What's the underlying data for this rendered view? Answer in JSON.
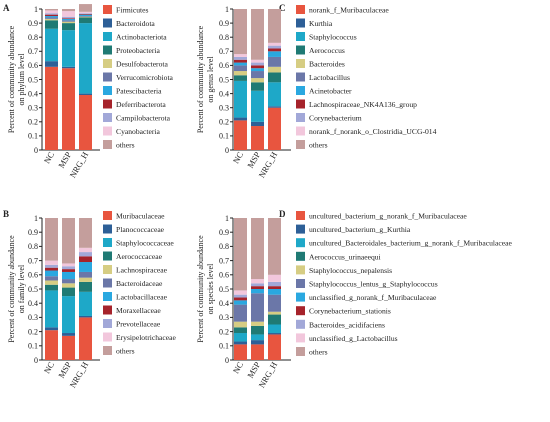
{
  "colors": [
    "#e8553f",
    "#2d5f97",
    "#1ea8c8",
    "#1f7a74",
    "#d6cd83",
    "#6b77a8",
    "#2aa8e0",
    "#a6232b",
    "#a2a8d8",
    "#f2c7dc",
    "#c49e9c"
  ],
  "chart_data": [
    {
      "panel": "A",
      "type": "bar",
      "stacked": true,
      "ylabel": "Percent of community abundance on phylum level",
      "ylabel_lines": [
        "Percent of community abundance",
        "on phylum level"
      ],
      "yticks": [
        "0",
        "0.1",
        "0.2",
        "0.3",
        "0.4",
        "0.5",
        "0.6",
        "0.7",
        "0.8",
        "0.9",
        "1"
      ],
      "ylim": [
        0,
        1
      ],
      "categories": [
        "NC",
        "MSP",
        "NRG_H"
      ],
      "series": [
        {
          "name": "Firmicutes",
          "values": [
            0.59,
            0.58,
            0.39
          ]
        },
        {
          "name": "Bacteroidota",
          "values": [
            0.04,
            0.01,
            0.01
          ]
        },
        {
          "name": "Actinobacteriota",
          "values": [
            0.23,
            0.26,
            0.5
          ]
        },
        {
          "name": "Proteobacteria",
          "values": [
            0.06,
            0.05,
            0.04
          ]
        },
        {
          "name": "Desulfobacterota",
          "values": [
            0.01,
            0.01,
            0.005
          ]
        },
        {
          "name": "Verrucomicrobiota",
          "values": [
            0.01,
            0.01,
            0.005
          ]
        },
        {
          "name": "Patescibacteria",
          "values": [
            0.01,
            0.01,
            0.01
          ]
        },
        {
          "name": "Deferribacterota",
          "values": [
            0.01,
            0.005,
            0.005
          ]
        },
        {
          "name": "Campilobacterota",
          "values": [
            0.01,
            0.01,
            0.005
          ]
        },
        {
          "name": "Cyanobacteria",
          "values": [
            0.02,
            0.04,
            0.01
          ]
        },
        {
          "name": "others",
          "values": [
            0.01,
            0.015,
            0.055
          ]
        }
      ]
    },
    {
      "panel": "B",
      "type": "bar",
      "stacked": true,
      "ylabel": "Percent of community abundance on family level",
      "ylabel_lines": [
        "Percent of community abundance",
        "on family level"
      ],
      "yticks": [
        "0",
        "0.1",
        "0.2",
        "0.3",
        "0.4",
        "0.5",
        "0.6",
        "0.7",
        "0.8",
        "0.9",
        "1"
      ],
      "ylim": [
        0,
        1
      ],
      "categories": [
        "NC",
        "MSP",
        "NRG_H"
      ],
      "series": [
        {
          "name": "Muribaculaceae",
          "values": [
            0.21,
            0.17,
            0.3
          ]
        },
        {
          "name": "Planococcaceae",
          "values": [
            0.02,
            0.02,
            0.01
          ]
        },
        {
          "name": "Staphylococcaceae",
          "values": [
            0.26,
            0.26,
            0.17
          ]
        },
        {
          "name": "Aerococcaceae",
          "values": [
            0.04,
            0.06,
            0.07
          ]
        },
        {
          "name": "Lachnospiraceae",
          "values": [
            0.03,
            0.03,
            0.03
          ]
        },
        {
          "name": "Bacteroidaceae",
          "values": [
            0.03,
            0.03,
            0.04
          ]
        },
        {
          "name": "Lactobacillaceae",
          "values": [
            0.04,
            0.05,
            0.07
          ]
        },
        {
          "name": "Moraxellaceae",
          "values": [
            0.02,
            0.02,
            0.04
          ]
        },
        {
          "name": "Prevotellaceae",
          "values": [
            0.02,
            0.02,
            0.03
          ]
        },
        {
          "name": "Erysipelotrichaceae",
          "values": [
            0.03,
            0.02,
            0.03
          ]
        },
        {
          "name": "others",
          "values": [
            0.3,
            0.32,
            0.21
          ]
        }
      ]
    },
    {
      "panel": "C",
      "type": "bar",
      "stacked": true,
      "ylabel": "Percent of community abundance on genus level",
      "ylabel_lines": [
        "Percent of community abundance",
        "on genus level"
      ],
      "yticks": [
        "0",
        "0.1",
        "0.2",
        "0.3",
        "0.4",
        "0.5",
        "0.6",
        "0.7",
        "0.8",
        "0.9",
        "1"
      ],
      "ylim": [
        0,
        1
      ],
      "categories": [
        "NC",
        "MSP",
        "NRG_H"
      ],
      "series": [
        {
          "name": "norank_f_Muribaculaceae",
          "values": [
            0.21,
            0.17,
            0.3
          ]
        },
        {
          "name": "Kurthia",
          "values": [
            0.02,
            0.03,
            0.01
          ]
        },
        {
          "name": "Staphylococcus",
          "values": [
            0.26,
            0.22,
            0.17
          ]
        },
        {
          "name": "Aerococcus",
          "values": [
            0.04,
            0.06,
            0.07
          ]
        },
        {
          "name": "Bacteroides",
          "values": [
            0.03,
            0.03,
            0.04
          ]
        },
        {
          "name": "Lactobacillus",
          "values": [
            0.04,
            0.05,
            0.07
          ]
        },
        {
          "name": "Acinetobacter",
          "values": [
            0.02,
            0.02,
            0.04
          ]
        },
        {
          "name": "Lachnospiraceae_NK4A136_group",
          "values": [
            0.02,
            0.02,
            0.02
          ]
        },
        {
          "name": "Corynebacterium",
          "values": [
            0.02,
            0.02,
            0.02
          ]
        },
        {
          "name": "norank_f_norank_o_Clostridia_UCG-014",
          "values": [
            0.02,
            0.02,
            0.02
          ]
        },
        {
          "name": "others",
          "values": [
            0.32,
            0.36,
            0.24
          ]
        }
      ]
    },
    {
      "panel": "D",
      "type": "bar",
      "stacked": true,
      "ylabel": "Percent of community abundance on species level",
      "ylabel_lines": [
        "Percent of community abundance",
        "on species level"
      ],
      "yticks": [
        "0",
        "0.1",
        "0.2",
        "0.3",
        "0.4",
        "0.5",
        "0.6",
        "0.7",
        "0.8",
        "0.9",
        "1"
      ],
      "ylim": [
        0,
        1
      ],
      "categories": [
        "NC",
        "MSP",
        "NRG_H"
      ],
      "series": [
        {
          "name": "uncultured_bacterium_g_norank_f_Muribaculaceae",
          "values": [
            0.11,
            0.11,
            0.18
          ]
        },
        {
          "name": "uncultured_bacterium_g_Kurthia",
          "values": [
            0.02,
            0.03,
            0.01
          ]
        },
        {
          "name": "uncultured_Bacteroidales_bacterium_g_norank_f_Muribaculaceae",
          "values": [
            0.06,
            0.04,
            0.06
          ]
        },
        {
          "name": "Aerococcus_urinaeequi",
          "values": [
            0.04,
            0.06,
            0.07
          ]
        },
        {
          "name": "Staphylococcus_nepalensis",
          "values": [
            0.04,
            0.03,
            0.02
          ]
        },
        {
          "name": "Staphylococcus_lentus_g_Staphylococcus",
          "values": [
            0.12,
            0.2,
            0.12
          ]
        },
        {
          "name": "unclassified_g_norank_f_Muribaculaceae",
          "values": [
            0.03,
            0.03,
            0.04
          ]
        },
        {
          "name": "Corynebacterium_stationis",
          "values": [
            0.02,
            0.02,
            0.02
          ]
        },
        {
          "name": "Bacteroides_acidifaciens",
          "values": [
            0.02,
            0.02,
            0.03
          ]
        },
        {
          "name": "unclassified_g_Lactobacillus",
          "values": [
            0.03,
            0.03,
            0.05
          ]
        },
        {
          "name": "others",
          "values": [
            0.51,
            0.43,
            0.4
          ]
        }
      ]
    }
  ]
}
